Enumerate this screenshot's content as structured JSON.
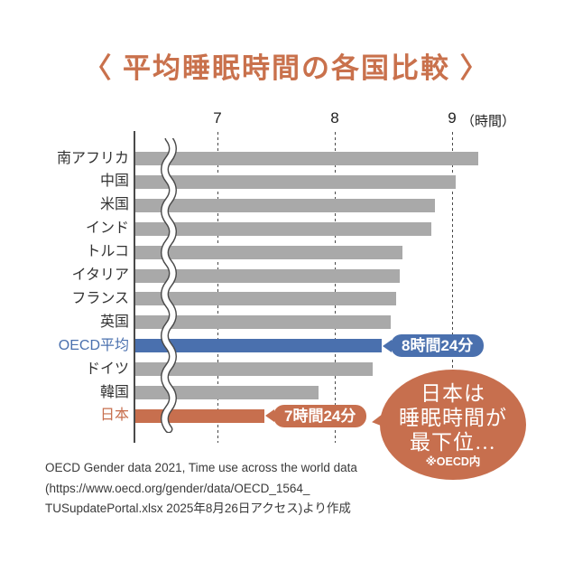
{
  "title": "〈 平均睡眠時間の各国比較 〉",
  "colors": {
    "title": "#c9714c",
    "bar_gray": "#a9a9a9",
    "bar_blue": "#4a70ae",
    "bar_orange": "#c76f4e",
    "axis": "#4a4a4a",
    "label_default": "#333333"
  },
  "chart_data": {
    "type": "bar",
    "orientation": "horizontal",
    "title": "平均睡眠時間の各国比較",
    "xlabel": "時間",
    "unit_label": "（時間）",
    "axis": {
      "min": 6.3,
      "max": 9.65,
      "ticks": [
        7,
        8,
        9
      ],
      "gridlines": "dashed",
      "axis_break": true
    },
    "bars": [
      {
        "label": "南アフリカ",
        "hours": 9.22,
        "color_key": "gray"
      },
      {
        "label": "中国",
        "hours": 9.03,
        "color_key": "gray"
      },
      {
        "label": "米国",
        "hours": 8.85,
        "color_key": "gray"
      },
      {
        "label": "インド",
        "hours": 8.82,
        "color_key": "gray"
      },
      {
        "label": "トルコ",
        "hours": 8.58,
        "color_key": "gray"
      },
      {
        "label": "イタリア",
        "hours": 8.55,
        "color_key": "gray"
      },
      {
        "label": "フランス",
        "hours": 8.52,
        "color_key": "gray"
      },
      {
        "label": "英国",
        "hours": 8.48,
        "color_key": "gray"
      },
      {
        "label": "OECD平均",
        "hours": 8.4,
        "color_key": "blue",
        "callout": "8時間24分"
      },
      {
        "label": "ドイツ",
        "hours": 8.32,
        "color_key": "gray"
      },
      {
        "label": "韓国",
        "hours": 7.86,
        "color_key": "gray"
      },
      {
        "label": "日本",
        "hours": 7.4,
        "color_key": "orange",
        "callout": "7時間24分"
      }
    ]
  },
  "annotation": {
    "line1": "日本は",
    "line2": "睡眠時間が",
    "line3": "最下位…",
    "note": "※OECD内"
  },
  "source": {
    "line1": "OECD Gender data 2021, Time use across the world data",
    "line2": "(https://www.oecd.org/gender/data/OECD_1564_",
    "line3": "TUSupdatePortal.xlsx  2025年8月26日アクセス)より作成"
  }
}
